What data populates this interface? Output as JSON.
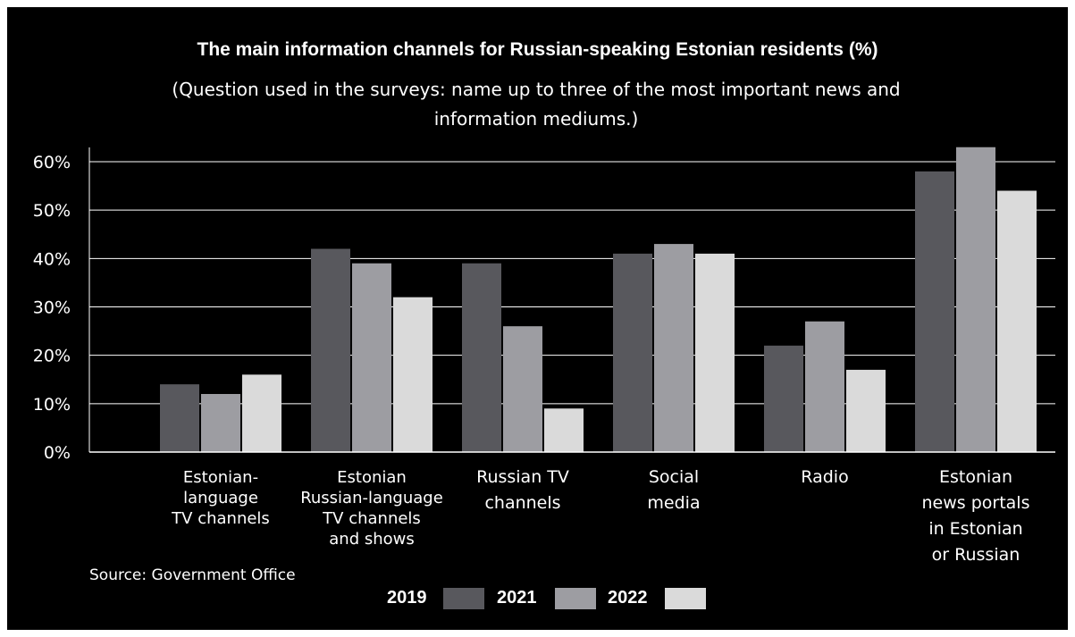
{
  "chart_data": {
    "type": "bar",
    "title": "The main information channels for Russian-speaking Estonian residents (%)",
    "subtitle": "(Question used in the surveys: name up to three of the most important news and information mediums.)",
    "categories": [
      "Estonian-language TV channels",
      "Estonian Russian-language TV channels and shows",
      "Russian TV channels",
      "Social media",
      "Radio",
      "Estonian news portals in Estonian or Russian"
    ],
    "category_label_lines": [
      [
        "Estonian-",
        "language",
        "TV channels"
      ],
      [
        "Estonian",
        "Russian-language",
        "TV channels",
        "and shows"
      ],
      [
        "Russian TV",
        "channels"
      ],
      [
        "Social",
        "media"
      ],
      [
        "Radio"
      ],
      [
        "Estonian",
        "news portals",
        "in Estonian",
        "or Russian"
      ]
    ],
    "series": [
      {
        "name": "2019",
        "color": "#58585d",
        "values": [
          14,
          42,
          39,
          41,
          22,
          58
        ]
      },
      {
        "name": "2021",
        "color": "#9d9da2",
        "values": [
          12,
          39,
          26,
          43,
          27,
          63
        ]
      },
      {
        "name": "2022",
        "color": "#dadada",
        "values": [
          16,
          32,
          9,
          41,
          17,
          54
        ]
      }
    ],
    "ylim": [
      0,
      60
    ],
    "yticks": [
      0,
      10,
      20,
      30,
      40,
      50,
      60
    ],
    "ytick_labels": [
      "0%",
      "10%",
      "20%",
      "30%",
      "40%",
      "50%",
      "60%"
    ],
    "grid": true,
    "legend_position": "bottom-center",
    "source": "Source: Government Office",
    "colors": {
      "background": "#000000",
      "text": "#ffffff",
      "grid": "#ffffff"
    }
  }
}
